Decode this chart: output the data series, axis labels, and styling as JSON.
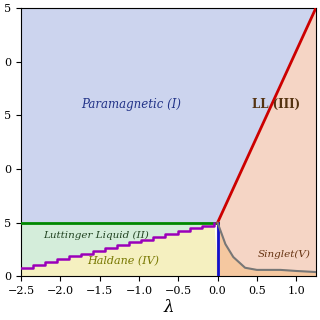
{
  "xlim": [
    -2.5,
    1.25
  ],
  "ylim": [
    -0.5,
    2.0
  ],
  "xlabel": "λ",
  "y_green": 0.0,
  "x_blue": 0.0,
  "red_x0": 0.0,
  "red_y0": 0.0,
  "red_x1": 1.25,
  "red_y1": 2.0,
  "color_paramagnetic": "#ccd4ee",
  "color_luttinger": "#d4edda",
  "color_ll3": "#f5d5c5",
  "color_haldane": "#f5f0c0",
  "color_singlet": "#f5c8a0",
  "color_green_line": "#008800",
  "color_blue_line": "#1111cc",
  "color_red_line": "#cc0000",
  "color_purple_line": "#9900bb",
  "color_gray_line": "#777777",
  "label_paramagnetic": "Paramagnetic (I)",
  "label_luttinger": "Luttinger Liquid (II)",
  "label_ll3": "LL (III)",
  "label_haldane": "Haldane (IV)",
  "label_singlet": "Singlet(V)",
  "gray_x": [
    0.0,
    0.1,
    0.2,
    0.35,
    0.5,
    0.65,
    0.8,
    1.0,
    1.25
  ],
  "gray_y": [
    0.0,
    -0.2,
    -0.32,
    -0.42,
    -0.44,
    -0.44,
    -0.44,
    -0.45,
    -0.46
  ],
  "purple_start_x": -2.5,
  "purple_end_x": -0.05,
  "purple_start_y": -0.42,
  "purple_end_y": 0.0,
  "purple_nsteps": 16
}
